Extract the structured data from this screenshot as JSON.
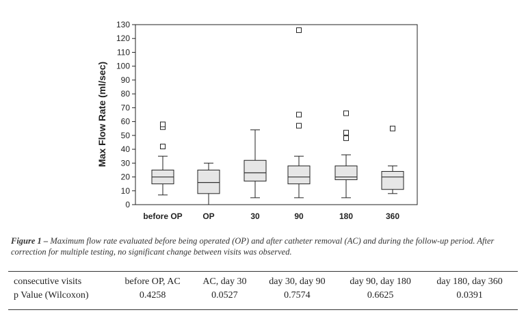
{
  "chart_data": {
    "type": "boxplot",
    "ylabel": "Max Flow Rate (ml/sec)",
    "ylim": [
      0,
      130
    ],
    "yticks": [
      0,
      10,
      20,
      30,
      40,
      50,
      60,
      70,
      80,
      90,
      100,
      110,
      120,
      130
    ],
    "categories": [
      "before OP",
      "OP",
      "30",
      "90",
      "180",
      "360"
    ],
    "boxes": [
      {
        "category": "before OP",
        "whisker_low": 7,
        "q1": 15,
        "median": 20,
        "q3": 25,
        "whisker_high": 35,
        "outliers": [
          42,
          56,
          58
        ]
      },
      {
        "category": "OP",
        "whisker_low": 0,
        "q1": 8,
        "median": 16,
        "q3": 25,
        "whisker_high": 30,
        "outliers": []
      },
      {
        "category": "30",
        "whisker_low": 5,
        "q1": 17,
        "median": 23,
        "q3": 32,
        "whisker_high": 54,
        "outliers": []
      },
      {
        "category": "90",
        "whisker_low": 5,
        "q1": 15,
        "median": 20,
        "q3": 28,
        "whisker_high": 35,
        "outliers": [
          57,
          65,
          126
        ]
      },
      {
        "category": "180",
        "whisker_low": 5,
        "q1": 18,
        "median": 20,
        "q3": 28,
        "whisker_high": 36,
        "outliers": [
          48,
          52,
          66
        ]
      },
      {
        "category": "360",
        "whisker_low": 8,
        "q1": 11,
        "median": 20,
        "q3": 24,
        "whisker_high": 28,
        "outliers": [
          55
        ]
      }
    ],
    "box_color": "#e6e6e6",
    "grid": false
  },
  "caption": {
    "lead": "Figure 1 –",
    "text": " Maximum flow rate evaluated before being operated (OP) and after catheter removal (AC) and during the follow-up period. After correction for multiple testing, no significant change between visits was observed."
  },
  "table": {
    "header": [
      "consecutive visits",
      "before OP, AC",
      "AC, day 30",
      "day 30, day 90",
      "day 90, day 180",
      "day 180, day 360"
    ],
    "row": [
      "p Value (Wilcoxon)",
      "0.4258",
      "0.0527",
      "0.7574",
      "0.6625",
      "0.0391"
    ]
  }
}
